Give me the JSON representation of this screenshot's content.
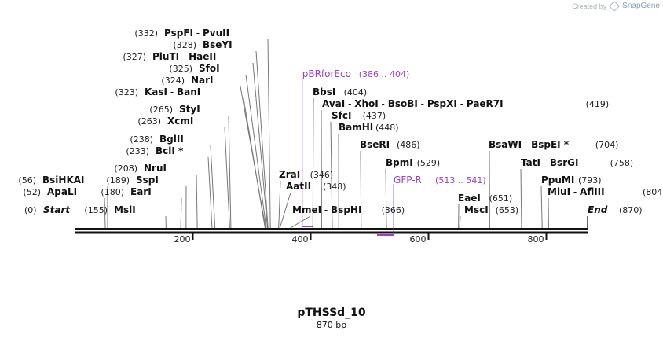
{
  "watermark": {
    "created_by": "Created by",
    "brand": "SnapGene"
  },
  "map": {
    "title": "pTHSSd_10",
    "length_label": "870 bp",
    "seq_length": 870
  },
  "ticks": [
    {
      "bp": 200,
      "label": "200"
    },
    {
      "bp": 400,
      "label": "400"
    },
    {
      "bp": 600,
      "label": "600"
    },
    {
      "bp": 800,
      "label": "800"
    }
  ],
  "ends": [
    {
      "pos": "(0)",
      "name": "Start",
      "side": "left"
    },
    {
      "pos": "(870)",
      "name": "End",
      "side": "right"
    }
  ],
  "labels": [
    {
      "bp": 56,
      "pos": "(56)",
      "names": [
        "BsiHKAI"
      ],
      "pos_side": "left"
    },
    {
      "bp": 52,
      "pos": "(52)",
      "names": [
        "ApaLI"
      ],
      "pos_side": "left"
    },
    {
      "bp": 155,
      "pos": "(155)",
      "names": [
        "MslI"
      ],
      "pos_side": "left"
    },
    {
      "bp": 180,
      "pos": "(180)",
      "names": [
        "EarI"
      ],
      "pos_side": "left"
    },
    {
      "bp": 189,
      "pos": "(189)",
      "names": [
        "SspI"
      ],
      "pos_side": "left"
    },
    {
      "bp": 208,
      "pos": "(208)",
      "names": [
        "NruI"
      ],
      "pos_side": "left"
    },
    {
      "bp": 233,
      "pos": "(233)",
      "names": [
        "BclI *"
      ],
      "pos_side": "left"
    },
    {
      "bp": 238,
      "pos": "(238)",
      "names": [
        "BglII"
      ],
      "pos_side": "left"
    },
    {
      "bp": 263,
      "pos": "(263)",
      "names": [
        "XcmI"
      ],
      "pos_side": "left"
    },
    {
      "bp": 265,
      "pos": "(265)",
      "names": [
        "StyI"
      ],
      "pos_side": "left"
    },
    {
      "bp": 323,
      "pos": "(323)",
      "names": [
        "KasI",
        "BanI"
      ],
      "pos_side": "left"
    },
    {
      "bp": 324,
      "pos": "(324)",
      "names": [
        "NarI"
      ],
      "pos_side": "left"
    },
    {
      "bp": 325,
      "pos": "(325)",
      "names": [
        "SfoI"
      ],
      "pos_side": "left"
    },
    {
      "bp": 327,
      "pos": "(327)",
      "names": [
        "PluTI",
        "HaeII"
      ],
      "pos_side": "left"
    },
    {
      "bp": 328,
      "pos": "(328)",
      "names": [
        "BseYI"
      ],
      "pos_side": "left"
    },
    {
      "bp": 332,
      "pos": "(332)",
      "names": [
        "PspFI",
        "PvuII"
      ],
      "pos_side": "left"
    },
    {
      "bp": 346,
      "pos": "(346)",
      "names": [
        "ZraI"
      ],
      "pos_side": "right"
    },
    {
      "bp": 348,
      "pos": "(348)",
      "names": [
        "AatII"
      ],
      "pos_side": "right"
    },
    {
      "bp": 366,
      "pos": "(366)",
      "names": [
        "MmeI",
        "BspHI"
      ],
      "pos_side": "right"
    },
    {
      "bp": 404,
      "pos": "(404)",
      "names": [
        "BbsI"
      ],
      "pos_side": "right"
    },
    {
      "bp": 419,
      "pos": "(419)",
      "names": [
        "AvaI",
        "XhoI",
        "BsoBI",
        "PspXI",
        "PaeR7I"
      ],
      "pos_side": "right"
    },
    {
      "bp": 437,
      "pos": "(437)",
      "names": [
        "SfcI"
      ],
      "pos_side": "right"
    },
    {
      "bp": 448,
      "pos": "(448)",
      "names": [
        "BamHI"
      ],
      "pos_side": "right"
    },
    {
      "bp": 486,
      "pos": "(486)",
      "names": [
        "BseRI"
      ],
      "pos_side": "right"
    },
    {
      "bp": 529,
      "pos": "(529)",
      "names": [
        "BpmI"
      ],
      "pos_side": "right"
    },
    {
      "bp": 651,
      "pos": "(651)",
      "names": [
        "EaeI"
      ],
      "pos_side": "right"
    },
    {
      "bp": 653,
      "pos": "(653)",
      "names": [
        "MscI"
      ],
      "pos_side": "right"
    },
    {
      "bp": 704,
      "pos": "(704)",
      "names": [
        "BsaWI",
        "BspEI *"
      ],
      "pos_side": "right"
    },
    {
      "bp": 758,
      "pos": "(758)",
      "names": [
        "TatI",
        "BsrGI"
      ],
      "pos_side": "right"
    },
    {
      "bp": 793,
      "pos": "(793)",
      "names": [
        "PpuMI"
      ],
      "pos_side": "right"
    },
    {
      "bp": 804,
      "pos": "(804)",
      "names": [
        "MluI",
        "AflIII"
      ],
      "pos_side": "right"
    }
  ],
  "features": [
    {
      "name": "pBRforEco",
      "range": "(386 .. 404)",
      "start": 386,
      "end": 404,
      "strand": "top",
      "color": "#9b3fd1"
    },
    {
      "name": "GFP-R",
      "range": "(513 .. 541)",
      "start": 513,
      "end": 541,
      "strand": "bottom",
      "color": "#9b3fd1"
    }
  ]
}
